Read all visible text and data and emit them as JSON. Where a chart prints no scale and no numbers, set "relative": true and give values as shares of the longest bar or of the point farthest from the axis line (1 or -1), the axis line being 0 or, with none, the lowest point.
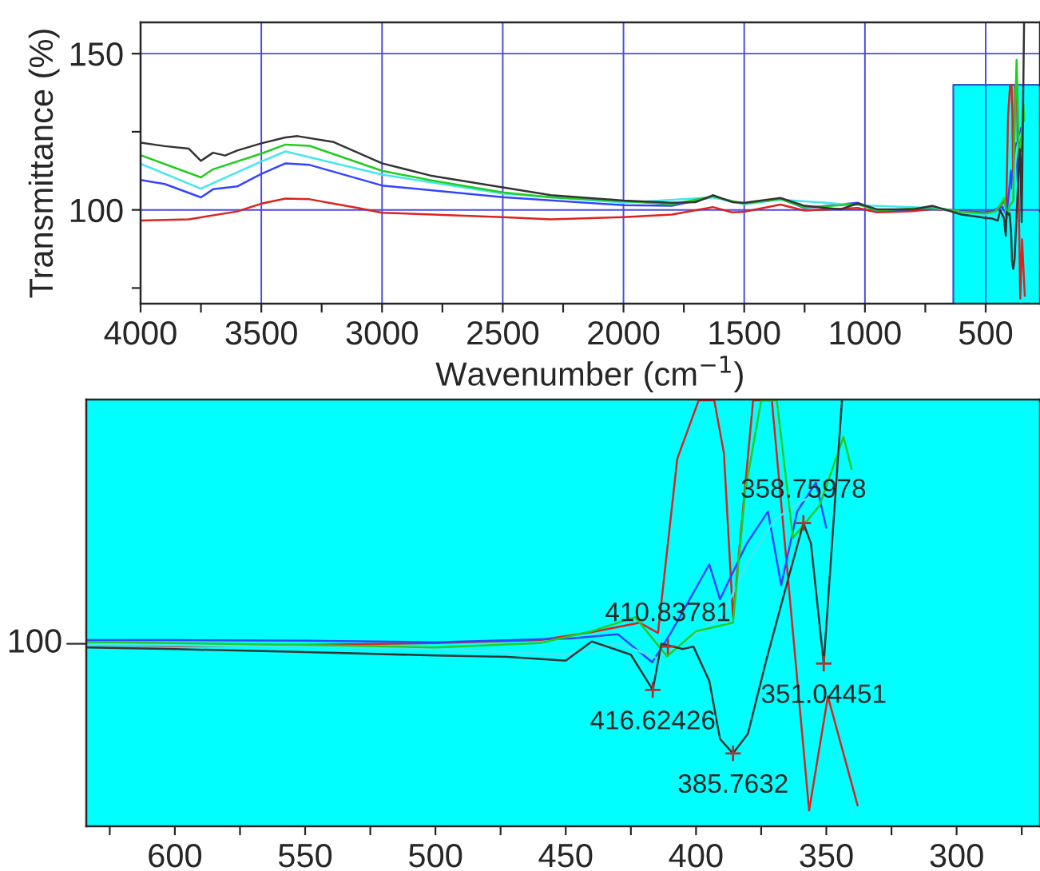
{
  "chart_data": [
    {
      "type": "line",
      "xlabel": "Wavenumber (cm$^{−1}$)",
      "ylabel": "Transmittance (%)",
      "xlim": [
        4000,
        275
      ],
      "ylim": [
        70,
        160
      ],
      "grid": true,
      "legend": false,
      "marker": "none",
      "line_style": "solid",
      "xticks": [
        4000,
        {
          "value": 3750,
          "label": null
        },
        3500,
        {
          "value": 3250,
          "label": null
        },
        3000,
        {
          "value": 2750,
          "label": null
        },
        2500,
        {
          "value": 2250,
          "label": null
        },
        2000,
        {
          "value": 1750,
          "label": null
        },
        1500,
        {
          "value": 1250,
          "label": null
        },
        1000,
        {
          "value": 750,
          "label": null
        },
        500
      ],
      "yticks": [
        {
          "value": 75,
          "label": null
        },
        100,
        {
          "value": 125,
          "label": null
        },
        150
      ],
      "bands": [
        {
          "axis": "x",
          "from": 634,
          "to": 268,
          "color": "#00ffff"
        }
      ],
      "series": [
        {
          "color": "#dd2222",
          "x": [
            4000,
            3800,
            3600,
            3500,
            3400,
            3300,
            3100,
            3000,
            2500,
            2300,
            2000,
            1800,
            1630,
            1550,
            1500,
            1350,
            1250,
            1030,
            950,
            800,
            720,
            600,
            500,
            460,
            440,
            421.6,
            414.6,
            407.2,
            399,
            393,
            389.3,
            385.8,
            378.1,
            370.9,
            356.6,
            349.4,
            338
          ],
          "values": [
            96.6,
            97,
            99.5,
            102,
            103.6,
            103.4,
            100.6,
            99.1,
            97.7,
            97.0,
            97.7,
            98.5,
            100.9,
            99.2,
            99.4,
            101.7,
            99.8,
            100.6,
            99.2,
            99.6,
            100.3,
            99.5,
            99.2,
            100,
            101.3,
            102.9,
            101.2,
            130.2,
            139.9,
            139.9,
            131.1,
            103.8,
            139.9,
            139.9,
            71.6,
            90.6,
            72.5
          ]
        },
        {
          "color": "#3344ff",
          "x": [
            4000,
            3900,
            3750,
            3700,
            3600,
            3500,
            3400,
            3300,
            3000,
            2500,
            2000,
            1800,
            1630,
            1500,
            1350,
            1250,
            1030,
            950,
            720,
            600,
            500,
            448,
            430,
            416.8,
            409.7,
            394.9,
            390.8,
            380.6,
            372.4,
            367.3,
            361.2,
            354,
            350
          ],
          "values": [
            109.6,
            108.3,
            104,
            106.6,
            107.5,
            111.5,
            114.9,
            114.4,
            107.8,
            104.1,
            101.5,
            101.3,
            104.1,
            101.9,
            103.6,
            100.6,
            102.3,
            99.6,
            100.6,
            99.6,
            99.0,
            100.3,
            101,
            96.3,
            101.2,
            112.6,
            106.8,
            116,
            121.4,
            109.1,
            121.4,
            126.2,
            118.7
          ]
        },
        {
          "color": "#44e6f0",
          "x": [
            4000,
            3750,
            3500,
            3400,
            3000,
            2500,
            2000,
            1630,
            1500,
            1350,
            1030,
            720,
            600,
            550,
            500,
            450,
            430,
            415,
            400,
            390,
            380,
            370,
            360,
            350
          ],
          "values": [
            114.8,
            106.8,
            115.5,
            118.7,
            111.3,
            105.2,
            102.3,
            104,
            101.8,
            103.3,
            101.5,
            100.6,
            99.2,
            98.9,
            98.5,
            97.6,
            99.5,
            97,
            101,
            104,
            113,
            120,
            123,
            125
          ]
        },
        {
          "color": "#22cc22",
          "x": [
            4000,
            3750,
            3700,
            3500,
            3400,
            3300,
            3000,
            2800,
            2500,
            2300,
            2000,
            1800,
            1630,
            1500,
            1350,
            1250,
            1030,
            950,
            720,
            600,
            500,
            460,
            440,
            423.4,
            411.1,
            400,
            385.8,
            381.1,
            375,
            372,
            369,
            362.8,
            352.6,
            343.4,
            340.3
          ],
          "values": [
            117.5,
            110.4,
            113,
            118,
            120.9,
            120.5,
            112.5,
            109.5,
            105.6,
            104,
            102.8,
            101.8,
            104.3,
            102,
            103.5,
            100.8,
            101.8,
            99.8,
            100.8,
            99.4,
            98.8,
            99.5,
            101.5,
            103.8,
            97.3,
            101.5,
            102.9,
            124.9,
            139.9,
            148,
            139.9,
            117,
            122.4,
            133.8,
            128.5
          ]
        },
        {
          "color": "#333333",
          "x": [
            4000,
            3900,
            3800,
            3750,
            3700,
            3650,
            3600,
            3500,
            3400,
            3350,
            3200,
            3000,
            2800,
            2500,
            2300,
            2000,
            1800,
            1700,
            1630,
            1550,
            1500,
            1350,
            1250,
            1100,
            1030,
            950,
            800,
            720,
            600,
            550,
            500,
            472.4,
            450,
            440,
            425,
            416.6,
            413.3,
            405.1,
            401,
            394.9,
            390.8,
            385.8,
            380.1,
            373,
            364.8,
            358.8,
            355.9,
            351.0,
            344,
            341
          ],
          "values": [
            121.5,
            120.4,
            119.6,
            115.7,
            118.3,
            117.4,
            119,
            121.3,
            123.2,
            123.6,
            121.7,
            114.9,
            111,
            107.2,
            104.7,
            103,
            102.3,
            102.5,
            104.7,
            102.5,
            102.3,
            103.8,
            101.3,
            100.2,
            102.1,
            100.2,
            100.2,
            101.3,
            98.5,
            98.0,
            97.4,
            97.2,
            96.6,
            99.8,
            97.6,
            91.7,
            99.4,
            98.5,
            98.9,
            93.2,
            83.5,
            81.1,
            84.4,
            96.7,
            109.9,
            119.5,
            116.1,
            96.1,
            139.9,
            160
          ]
        }
      ]
    },
    {
      "type": "line",
      "xlim": [
        634,
        268
      ],
      "relative": true,
      "grid": false,
      "legend": false,
      "marker": "none",
      "line_style": "solid",
      "xticks": [
        {
          "value": 625,
          "label": null
        },
        600,
        {
          "value": 575,
          "label": null
        },
        550,
        {
          "value": 525,
          "label": null
        },
        500,
        {
          "value": 475,
          "label": null
        },
        450,
        {
          "value": 425,
          "label": null
        },
        400,
        {
          "value": 375,
          "label": null
        },
        350,
        {
          "value": 325,
          "label": null
        },
        300,
        {
          "value": 275,
          "label": null
        }
      ],
      "bands": [
        {
          "axis": "x",
          "from": 634,
          "to": 268,
          "color": "#00ffff"
        }
      ],
      "annotations": [
        "100",
        {
          "text": "358.75978",
          "x": 358.8,
          "y": 0.712
        },
        {
          "text": "410.83781",
          "x": 410.8,
          "y": 0.422
        },
        {
          "text": "416.62426",
          "x": 416.6,
          "y": 0.32
        },
        {
          "text": "351.04451",
          "x": 351.0,
          "y": 0.382
        },
        {
          "text": "385.7632",
          "x": 385.8,
          "y": 0.171
        }
      ],
      "series": [
        {
          "color": "#dd2222",
          "x": [
            634,
            600,
            550,
            500,
            460,
            440,
            421.6,
            414.6,
            407.2,
            399,
            393,
            389.3,
            385.8,
            378.1,
            370.9,
            356.6,
            349.4,
            338
          ],
          "values": [
            0.426,
            0.423,
            0.426,
            0.43,
            0.437,
            0.456,
            0.478,
            0.454,
            0.863,
            1,
            1,
            0.876,
            0.491,
            1,
            1,
            0.037,
            0.305,
            0.049
          ]
        },
        {
          "color": "#3344ff",
          "x": [
            634,
            600,
            550,
            500,
            448,
            430,
            416.8,
            409.7,
            394.9,
            390.8,
            380.6,
            372.4,
            367.3,
            361.2,
            354,
            350
          ],
          "values": [
            0.437,
            0.437,
            0.436,
            0.432,
            0.441,
            0.451,
            0.385,
            0.454,
            0.615,
            0.533,
            0.663,
            0.739,
            0.566,
            0.739,
            0.807,
            0.701
          ]
        },
        {
          "color": "#44e6f0",
          "x": [
            634,
            600,
            550,
            500,
            450,
            430,
            415,
            400,
            390,
            380,
            370,
            360,
            350
          ],
          "values": [
            0.426,
            0.425,
            0.422,
            0.416,
            0.403,
            0.43,
            0.395,
            0.451,
            0.494,
            0.621,
            0.719,
            0.762,
            0.79
          ]
        },
        {
          "color": "#22cc22",
          "x": [
            634,
            600,
            550,
            500,
            460,
            440,
            423.4,
            411.1,
            400,
            385.8,
            381.1,
            375,
            369,
            362.8,
            352.6,
            343.4,
            340.3
          ],
          "values": [
            0.433,
            0.43,
            0.426,
            0.42,
            0.43,
            0.458,
            0.491,
            0.399,
            0.458,
            0.478,
            0.788,
            1,
            1,
            0.677,
            0.753,
            0.914,
            0.839
          ]
        },
        {
          "color": "#333333",
          "x": [
            634,
            600,
            550,
            500,
            472.4,
            450,
            440,
            425,
            416.6,
            413.3,
            405.1,
            401,
            394.9,
            390.8,
            385.8,
            380.1,
            373,
            364.8,
            358.8,
            355.9,
            351.0,
            344
          ],
          "values": [
            0.42,
            0.416,
            0.409,
            0.401,
            0.398,
            0.389,
            0.434,
            0.403,
            0.32,
            0.429,
            0.416,
            0.422,
            0.341,
            0.205,
            0.171,
            0.217,
            0.391,
            0.577,
            0.712,
            0.664,
            0.382,
            1
          ]
        }
      ]
    }
  ]
}
